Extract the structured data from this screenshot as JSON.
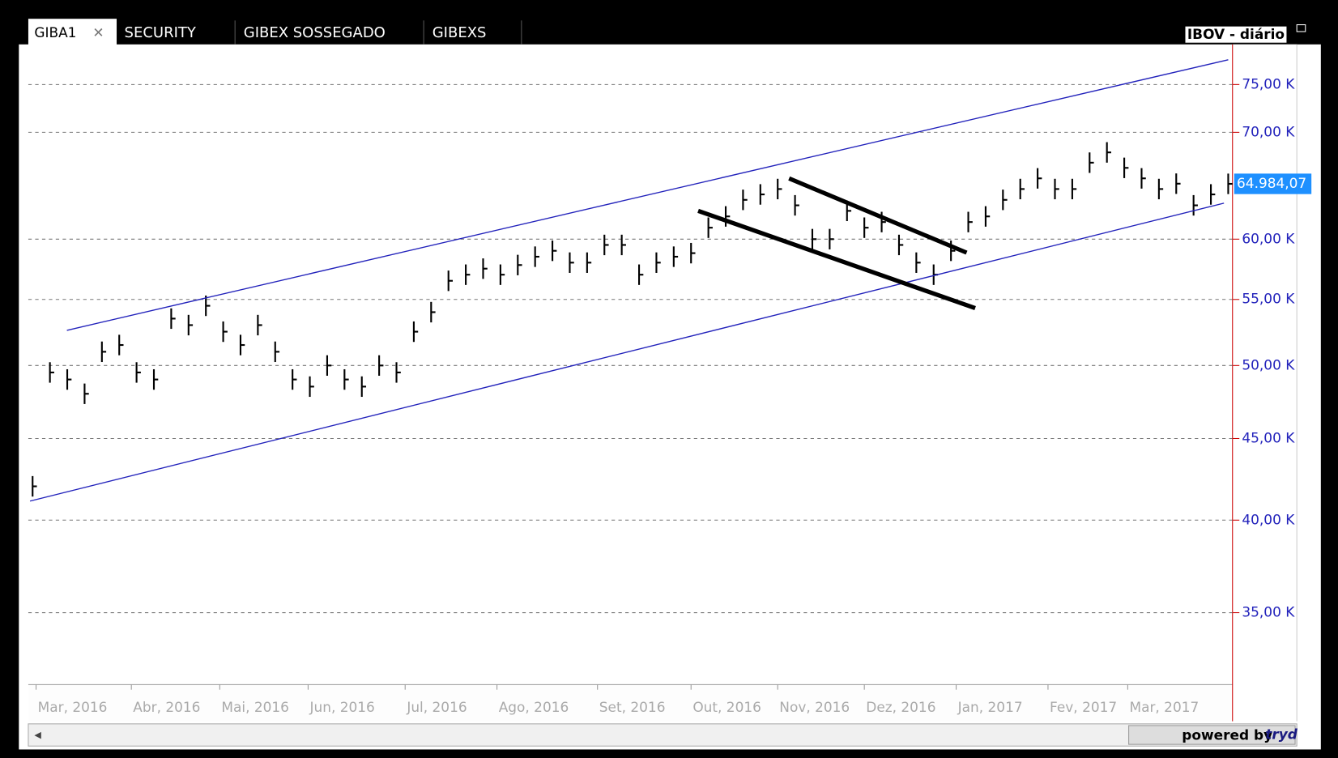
{
  "ui": {
    "tabs": [
      "GIBA1",
      "SECURITY",
      "GIBEX SOSSEGADO",
      "GIBEXS"
    ],
    "symbol_label": "IBOV - diário",
    "powered_by": "powered by",
    "brand": "tryd"
  },
  "chart_data": {
    "type": "bar-ticks",
    "log_scale": true,
    "grid": true,
    "color": "#000000",
    "ylim": [
      31550,
      79470
    ],
    "yticks": [
      {
        "value": 35000,
        "label": "35,00 K"
      },
      {
        "value": 40000,
        "label": "40,00 K"
      },
      {
        "value": 45000,
        "label": "45,00 K"
      },
      {
        "value": 50000,
        "label": "50,00 K"
      },
      {
        "value": 55000,
        "label": "55,00 K"
      },
      {
        "value": 60000,
        "label": "60,00 K"
      },
      {
        "value": 70000,
        "label": "70,00 K"
      },
      {
        "value": 75000,
        "label": "75,00 K"
      }
    ],
    "xlim": [
      0,
      69
    ],
    "xticks": [
      {
        "value": 0.2,
        "label": "Mar, 2016"
      },
      {
        "value": 5.7,
        "label": "Abr, 2016"
      },
      {
        "value": 10.8,
        "label": "Mai, 2016"
      },
      {
        "value": 15.9,
        "label": "Jun, 2016"
      },
      {
        "value": 21.5,
        "label": "Jul, 2016"
      },
      {
        "value": 26.8,
        "label": "Ago, 2016"
      },
      {
        "value": 32.6,
        "label": "Set, 2016"
      },
      {
        "value": 38,
        "label": "Out, 2016"
      },
      {
        "value": 43,
        "label": "Nov, 2016"
      },
      {
        "value": 48,
        "label": "Dez, 2016"
      },
      {
        "value": 53.3,
        "label": "Jan, 2017"
      },
      {
        "value": 58.6,
        "label": "Fev, 2017"
      },
      {
        "value": 63.2,
        "label": "Mar, 2017"
      }
    ],
    "values": [
      42000,
      49500,
      49000,
      48000,
      51000,
      51500,
      49500,
      49000,
      53500,
      53000,
      54500,
      52500,
      51500,
      53000,
      51000,
      49000,
      48500,
      50000,
      49000,
      48500,
      50000,
      49500,
      52500,
      54000,
      56500,
      57000,
      57500,
      57000,
      57800,
      58500,
      59000,
      58000,
      58000,
      59500,
      59500,
      57000,
      58000,
      58500,
      58800,
      61000,
      62000,
      63500,
      64000,
      64500,
      63000,
      60000,
      60000,
      62500,
      61000,
      61500,
      59500,
      58000,
      57000,
      59000,
      61500,
      62000,
      63500,
      64500,
      65500,
      64500,
      64500,
      67000,
      68000,
      66500,
      65500,
      64500,
      65000,
      63000,
      64000,
      64984.07
    ],
    "last_price_label": "64.984,07"
  }
}
